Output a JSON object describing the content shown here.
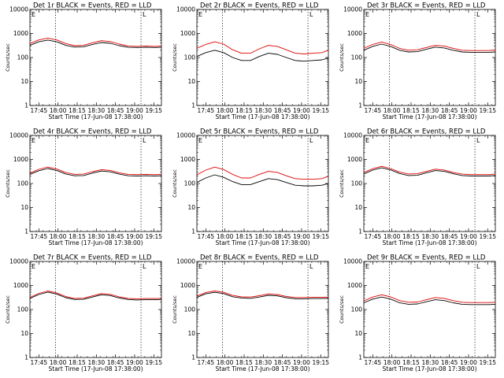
{
  "figure": {
    "colors": {
      "events": "#000000",
      "lld": "#e00000"
    },
    "panel_marks": [
      "E",
      "L"
    ]
  },
  "chart_data": [
    {
      "type": "line",
      "title": "Det 1r BLACK = Events, RED = LLD",
      "xlabel": "Start Time (17-Jun-08 17:38:00)",
      "ylabel": "Counts/sec",
      "yscale": "log",
      "ylim": [
        1,
        10000
      ],
      "y_ticks": [
        "1",
        "10",
        "100",
        "1000",
        "10000"
      ],
      "x_ticks": [
        "17:45",
        "18:00",
        "18:15",
        "18:30",
        "18:45",
        "19:00",
        "19:15"
      ],
      "xlim_minutes": [
        0,
        103
      ],
      "markers_at": [
        "17:58",
        "19:05"
      ],
      "x": [
        "17:38",
        "17:45",
        "17:52",
        "17:59",
        "18:06",
        "18:13",
        "18:20",
        "18:27",
        "18:34",
        "18:41",
        "18:48",
        "18:55",
        "19:02",
        "19:09",
        "19:16",
        "19:21"
      ],
      "series": [
        {
          "values": [
            320,
            450,
            530,
            450,
            320,
            270,
            280,
            350,
            420,
            390,
            310,
            265,
            260,
            265,
            260,
            265
          ]
        },
        {
          "values": [
            380,
            540,
            640,
            540,
            380,
            310,
            320,
            410,
            500,
            460,
            360,
            300,
            290,
            300,
            290,
            300
          ]
        }
      ]
    },
    {
      "type": "line",
      "title": "Det 2r BLACK = Events, RED = LLD",
      "xlabel": "Start Time (17-Jun-08 17:38:00)",
      "ylabel": "Counts/sec",
      "yscale": "log",
      "ylim": [
        1,
        10000
      ],
      "y_ticks": [
        "1",
        "10",
        "100",
        "1000",
        "10000"
      ],
      "x_ticks": [
        "17:45",
        "18:00",
        "18:15",
        "18:30",
        "18:45",
        "19:00",
        "19:15"
      ],
      "xlim_minutes": [
        0,
        103
      ],
      "markers_at": [
        "17:58",
        "19:05"
      ],
      "x": [
        "17:38",
        "17:45",
        "17:52",
        "17:59",
        "18:06",
        "18:13",
        "18:20",
        "18:27",
        "18:34",
        "18:41",
        "18:48",
        "18:55",
        "19:02",
        "19:09",
        "19:16",
        "19:21"
      ],
      "series": [
        {
          "values": [
            110,
            160,
            200,
            160,
            100,
            75,
            75,
            110,
            150,
            135,
            100,
            75,
            70,
            75,
            80,
            95
          ]
        },
        {
          "values": [
            240,
            350,
            450,
            360,
            210,
            150,
            150,
            230,
            320,
            290,
            210,
            150,
            140,
            150,
            160,
            200
          ]
        }
      ]
    },
    {
      "type": "line",
      "title": "Det 3r BLACK = Events, RED = LLD",
      "xlabel": "Start Time (17-Jun-08 17:38:00)",
      "ylabel": "Counts/sec",
      "yscale": "log",
      "ylim": [
        1,
        10000
      ],
      "y_ticks": [
        "1",
        "10",
        "100",
        "1000",
        "10000"
      ],
      "x_ticks": [
        "17:45",
        "18:00",
        "18:15",
        "18:30",
        "18:45",
        "19:00",
        "19:15"
      ],
      "xlim_minutes": [
        0,
        103
      ],
      "markers_at": [
        "17:58",
        "19:05"
      ],
      "x": [
        "17:38",
        "17:45",
        "17:52",
        "17:59",
        "18:06",
        "18:13",
        "18:20",
        "18:27",
        "18:34",
        "18:41",
        "18:48",
        "18:55",
        "19:02",
        "19:09",
        "19:16",
        "19:21"
      ],
      "series": [
        {
          "values": [
            200,
            290,
            360,
            290,
            200,
            170,
            175,
            220,
            270,
            250,
            200,
            170,
            165,
            165,
            165,
            170
          ]
        },
        {
          "values": [
            240,
            350,
            440,
            350,
            240,
            200,
            210,
            260,
            320,
            300,
            240,
            200,
            195,
            195,
            195,
            205
          ]
        }
      ]
    },
    {
      "type": "line",
      "title": "Det 4r BLACK = Events, RED = LLD",
      "xlabel": "Start Time (17-Jun-08 17:38:00)",
      "ylabel": "Counts/sec",
      "yscale": "log",
      "ylim": [
        1,
        10000
      ],
      "y_ticks": [
        "1",
        "10",
        "100",
        "1000",
        "10000"
      ],
      "x_ticks": [
        "17:45",
        "18:00",
        "18:15",
        "18:30",
        "18:45",
        "19:00",
        "19:15"
      ],
      "xlim_minutes": [
        0,
        103
      ],
      "markers_at": [
        "17:58",
        "19:05"
      ],
      "x": [
        "17:38",
        "17:45",
        "17:52",
        "17:59",
        "18:06",
        "18:13",
        "18:20",
        "18:27",
        "18:34",
        "18:41",
        "18:48",
        "18:55",
        "19:02",
        "19:09",
        "19:16",
        "19:21"
      ],
      "series": [
        {
          "values": [
            240,
            340,
            420,
            350,
            250,
            210,
            215,
            270,
            330,
            305,
            245,
            210,
            205,
            210,
            205,
            210
          ]
        },
        {
          "values": [
            270,
            390,
            480,
            400,
            285,
            240,
            245,
            310,
            375,
            350,
            280,
            240,
            235,
            240,
            235,
            240
          ]
        }
      ]
    },
    {
      "type": "line",
      "title": "Det 5r BLACK = Events, RED = LLD",
      "xlabel": "Start Time (17-Jun-08 17:38:00)",
      "ylabel": "Counts/sec",
      "yscale": "log",
      "ylim": [
        1,
        10000
      ],
      "y_ticks": [
        "1",
        "10",
        "100",
        "1000",
        "10000"
      ],
      "x_ticks": [
        "17:45",
        "18:00",
        "18:15",
        "18:30",
        "18:45",
        "19:00",
        "19:15"
      ],
      "xlim_minutes": [
        0,
        103
      ],
      "markers_at": [
        "17:58",
        "19:05"
      ],
      "x": [
        "17:38",
        "17:45",
        "17:52",
        "17:59",
        "18:06",
        "18:13",
        "18:20",
        "18:27",
        "18:34",
        "18:41",
        "18:48",
        "18:55",
        "19:02",
        "19:09",
        "19:16",
        "19:21"
      ],
      "series": [
        {
          "values": [
            110,
            170,
            230,
            180,
            120,
            90,
            90,
            120,
            160,
            145,
            110,
            85,
            80,
            80,
            85,
            100
          ]
        },
        {
          "values": [
            230,
            360,
            480,
            380,
            240,
            170,
            170,
            240,
            320,
            290,
            210,
            160,
            150,
            150,
            160,
            200
          ]
        }
      ]
    },
    {
      "type": "line",
      "title": "Det 6r BLACK = Events, RED = LLD",
      "xlabel": "Start Time (17-Jun-08 17:38:00)",
      "ylabel": "Counts/sec",
      "yscale": "log",
      "ylim": [
        1,
        10000
      ],
      "y_ticks": [
        "1",
        "10",
        "100",
        "1000",
        "10000"
      ],
      "x_ticks": [
        "17:45",
        "18:00",
        "18:15",
        "18:30",
        "18:45",
        "19:00",
        "19:15"
      ],
      "xlim_minutes": [
        0,
        103
      ],
      "markers_at": [
        "17:58",
        "19:05"
      ],
      "x": [
        "17:38",
        "17:45",
        "17:52",
        "17:59",
        "18:06",
        "18:13",
        "18:20",
        "18:27",
        "18:34",
        "18:41",
        "18:48",
        "18:55",
        "19:02",
        "19:09",
        "19:16",
        "19:21"
      ],
      "series": [
        {
          "values": [
            250,
            360,
            450,
            370,
            260,
            215,
            220,
            280,
            345,
            320,
            255,
            215,
            205,
            205,
            205,
            215
          ]
        },
        {
          "values": [
            290,
            410,
            520,
            420,
            300,
            250,
            255,
            320,
            395,
            365,
            290,
            245,
            235,
            235,
            235,
            245
          ]
        }
      ]
    },
    {
      "type": "line",
      "title": "Det 7r BLACK = Events, RED = LLD",
      "xlabel": "Start Time (17-Jun-08 17:38:00)",
      "ylabel": "Counts/sec",
      "yscale": "log",
      "ylim": [
        1,
        10000
      ],
      "y_ticks": [
        "1",
        "10",
        "100",
        "1000",
        "10000"
      ],
      "x_ticks": [
        "17:45",
        "18:00",
        "18:15",
        "18:30",
        "18:45",
        "19:00",
        "19:15"
      ],
      "xlim_minutes": [
        0,
        103
      ],
      "markers_at": [
        "17:58",
        "19:05"
      ],
      "x": [
        "17:38",
        "17:45",
        "17:52",
        "17:59",
        "18:06",
        "18:13",
        "18:20",
        "18:27",
        "18:34",
        "18:41",
        "18:48",
        "18:55",
        "19:02",
        "19:09",
        "19:16",
        "19:21"
      ],
      "series": [
        {
          "values": [
            290,
            420,
            530,
            440,
            310,
            260,
            265,
            330,
            410,
            380,
            300,
            260,
            250,
            255,
            255,
            260
          ]
        },
        {
          "values": [
            320,
            470,
            590,
            490,
            345,
            290,
            295,
            370,
            460,
            425,
            335,
            290,
            280,
            285,
            285,
            290
          ]
        }
      ]
    },
    {
      "type": "line",
      "title": "Det 8r BLACK = Events, RED = LLD",
      "xlabel": "Start Time (17-Jun-08 17:38:00)",
      "ylabel": "Counts/sec",
      "yscale": "log",
      "ylim": [
        1,
        10000
      ],
      "y_ticks": [
        "1",
        "10",
        "100",
        "1000",
        "10000"
      ],
      "x_ticks": [
        "17:45",
        "18:00",
        "18:15",
        "18:30",
        "18:45",
        "19:00",
        "19:15"
      ],
      "xlim_minutes": [
        0,
        103
      ],
      "markers_at": [
        "17:58",
        "19:05"
      ],
      "x": [
        "17:38",
        "17:45",
        "17:52",
        "17:59",
        "18:06",
        "18:13",
        "18:20",
        "18:27",
        "18:34",
        "18:41",
        "18:48",
        "18:55",
        "19:02",
        "19:09",
        "19:16",
        "19:21"
      ],
      "series": [
        {
          "values": [
            320,
            450,
            520,
            460,
            340,
            300,
            290,
            330,
            390,
            370,
            310,
            280,
            280,
            285,
            285,
            290
          ]
        },
        {
          "values": [
            360,
            510,
            590,
            520,
            385,
            335,
            330,
            375,
            445,
            420,
            350,
            315,
            315,
            320,
            320,
            330
          ]
        }
      ]
    },
    {
      "type": "line",
      "title": "Det 9r BLACK = Events, RED = LLD",
      "xlabel": "Start Time (17-Jun-08 17:38:00)",
      "ylabel": "Counts/sec",
      "yscale": "log",
      "ylim": [
        1,
        10000
      ],
      "y_ticks": [
        "1",
        "10",
        "100",
        "1000",
        "10000"
      ],
      "x_ticks": [
        "17:45",
        "18:00",
        "18:15",
        "18:30",
        "18:45",
        "19:00",
        "19:15"
      ],
      "xlim_minutes": [
        0,
        103
      ],
      "markers_at": [
        "17:58",
        "19:05"
      ],
      "x": [
        "17:38",
        "17:45",
        "17:52",
        "17:59",
        "18:06",
        "18:13",
        "18:20",
        "18:27",
        "18:34",
        "18:41",
        "18:48",
        "18:55",
        "19:02",
        "19:09",
        "19:16",
        "19:21"
      ],
      "series": [
        {
          "values": [
            190,
            270,
            330,
            270,
            190,
            165,
            170,
            210,
            255,
            235,
            190,
            165,
            160,
            160,
            160,
            165
          ]
        },
        {
          "values": [
            230,
            330,
            410,
            335,
            235,
            200,
            205,
            255,
            315,
            290,
            235,
            200,
            195,
            195,
            195,
            200
          ]
        }
      ]
    }
  ]
}
